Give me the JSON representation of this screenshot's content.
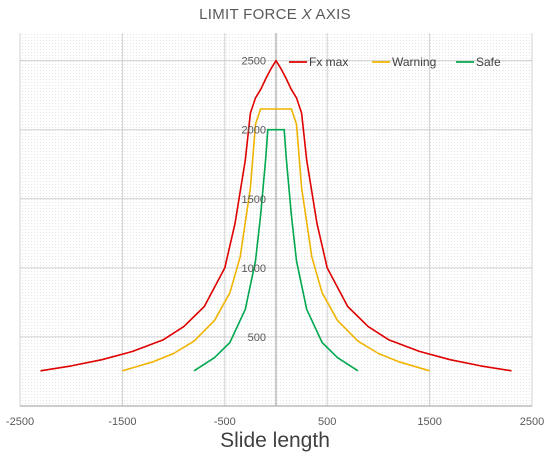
{
  "chart_data": {
    "type": "line",
    "title_main": "LIMIT FORCE ",
    "title_italic": "X",
    "title_end": " AXIS",
    "xlabel": "Slide length",
    "ylabel": "",
    "xlim": [
      -2500,
      2500
    ],
    "ylim": [
      0,
      2700
    ],
    "x_ticks": [
      -2500,
      -1500,
      -500,
      500,
      1500,
      2500
    ],
    "x_tick_labels": [
      "-2500",
      "-1500",
      "-500",
      "500",
      "1500",
      "2500"
    ],
    "y_ticks": [
      500,
      1000,
      1500,
      2000,
      2500
    ],
    "y_tick_labels": [
      "500",
      "1000",
      "1500",
      "2000",
      "2500"
    ],
    "grid": true,
    "legend_position": "top-right",
    "series": [
      {
        "name": "Fx max",
        "color": "#e00000",
        "x": [
          -2300,
          -2000,
          -1700,
          -1400,
          -1100,
          -900,
          -700,
          -500,
          -400,
          -300,
          -250,
          -200,
          -150,
          -100,
          -50,
          0,
          50,
          100,
          150,
          200,
          250,
          300,
          400,
          500,
          700,
          900,
          1100,
          1400,
          1700,
          2000,
          2300
        ],
        "y": [
          255,
          290,
          335,
          395,
          480,
          575,
          720,
          1000,
          1320,
          1780,
          2120,
          2230,
          2290,
          2370,
          2440,
          2500,
          2440,
          2370,
          2290,
          2230,
          2120,
          1780,
          1320,
          1000,
          720,
          575,
          480,
          395,
          335,
          290,
          255
        ]
      },
      {
        "name": "Warning",
        "color": "#f0b400",
        "x": [
          -1500,
          -1200,
          -1000,
          -800,
          -600,
          -450,
          -350,
          -250,
          -200,
          -150,
          -100,
          0,
          100,
          150,
          200,
          250,
          350,
          450,
          600,
          800,
          1000,
          1200,
          1500
        ],
        "y": [
          255,
          320,
          380,
          470,
          620,
          820,
          1080,
          1580,
          2040,
          2150,
          2150,
          2150,
          2150,
          2150,
          2040,
          1580,
          1080,
          820,
          620,
          470,
          380,
          320,
          255
        ]
      },
      {
        "name": "Safe",
        "color": "#00a84f",
        "x": [
          -800,
          -600,
          -450,
          -300,
          -200,
          -150,
          -100,
          -80,
          0,
          80,
          100,
          150,
          200,
          300,
          450,
          600,
          800
        ],
        "y": [
          255,
          350,
          460,
          700,
          1050,
          1380,
          1800,
          2000,
          2000,
          2000,
          1800,
          1380,
          1050,
          700,
          460,
          350,
          255
        ]
      }
    ]
  }
}
